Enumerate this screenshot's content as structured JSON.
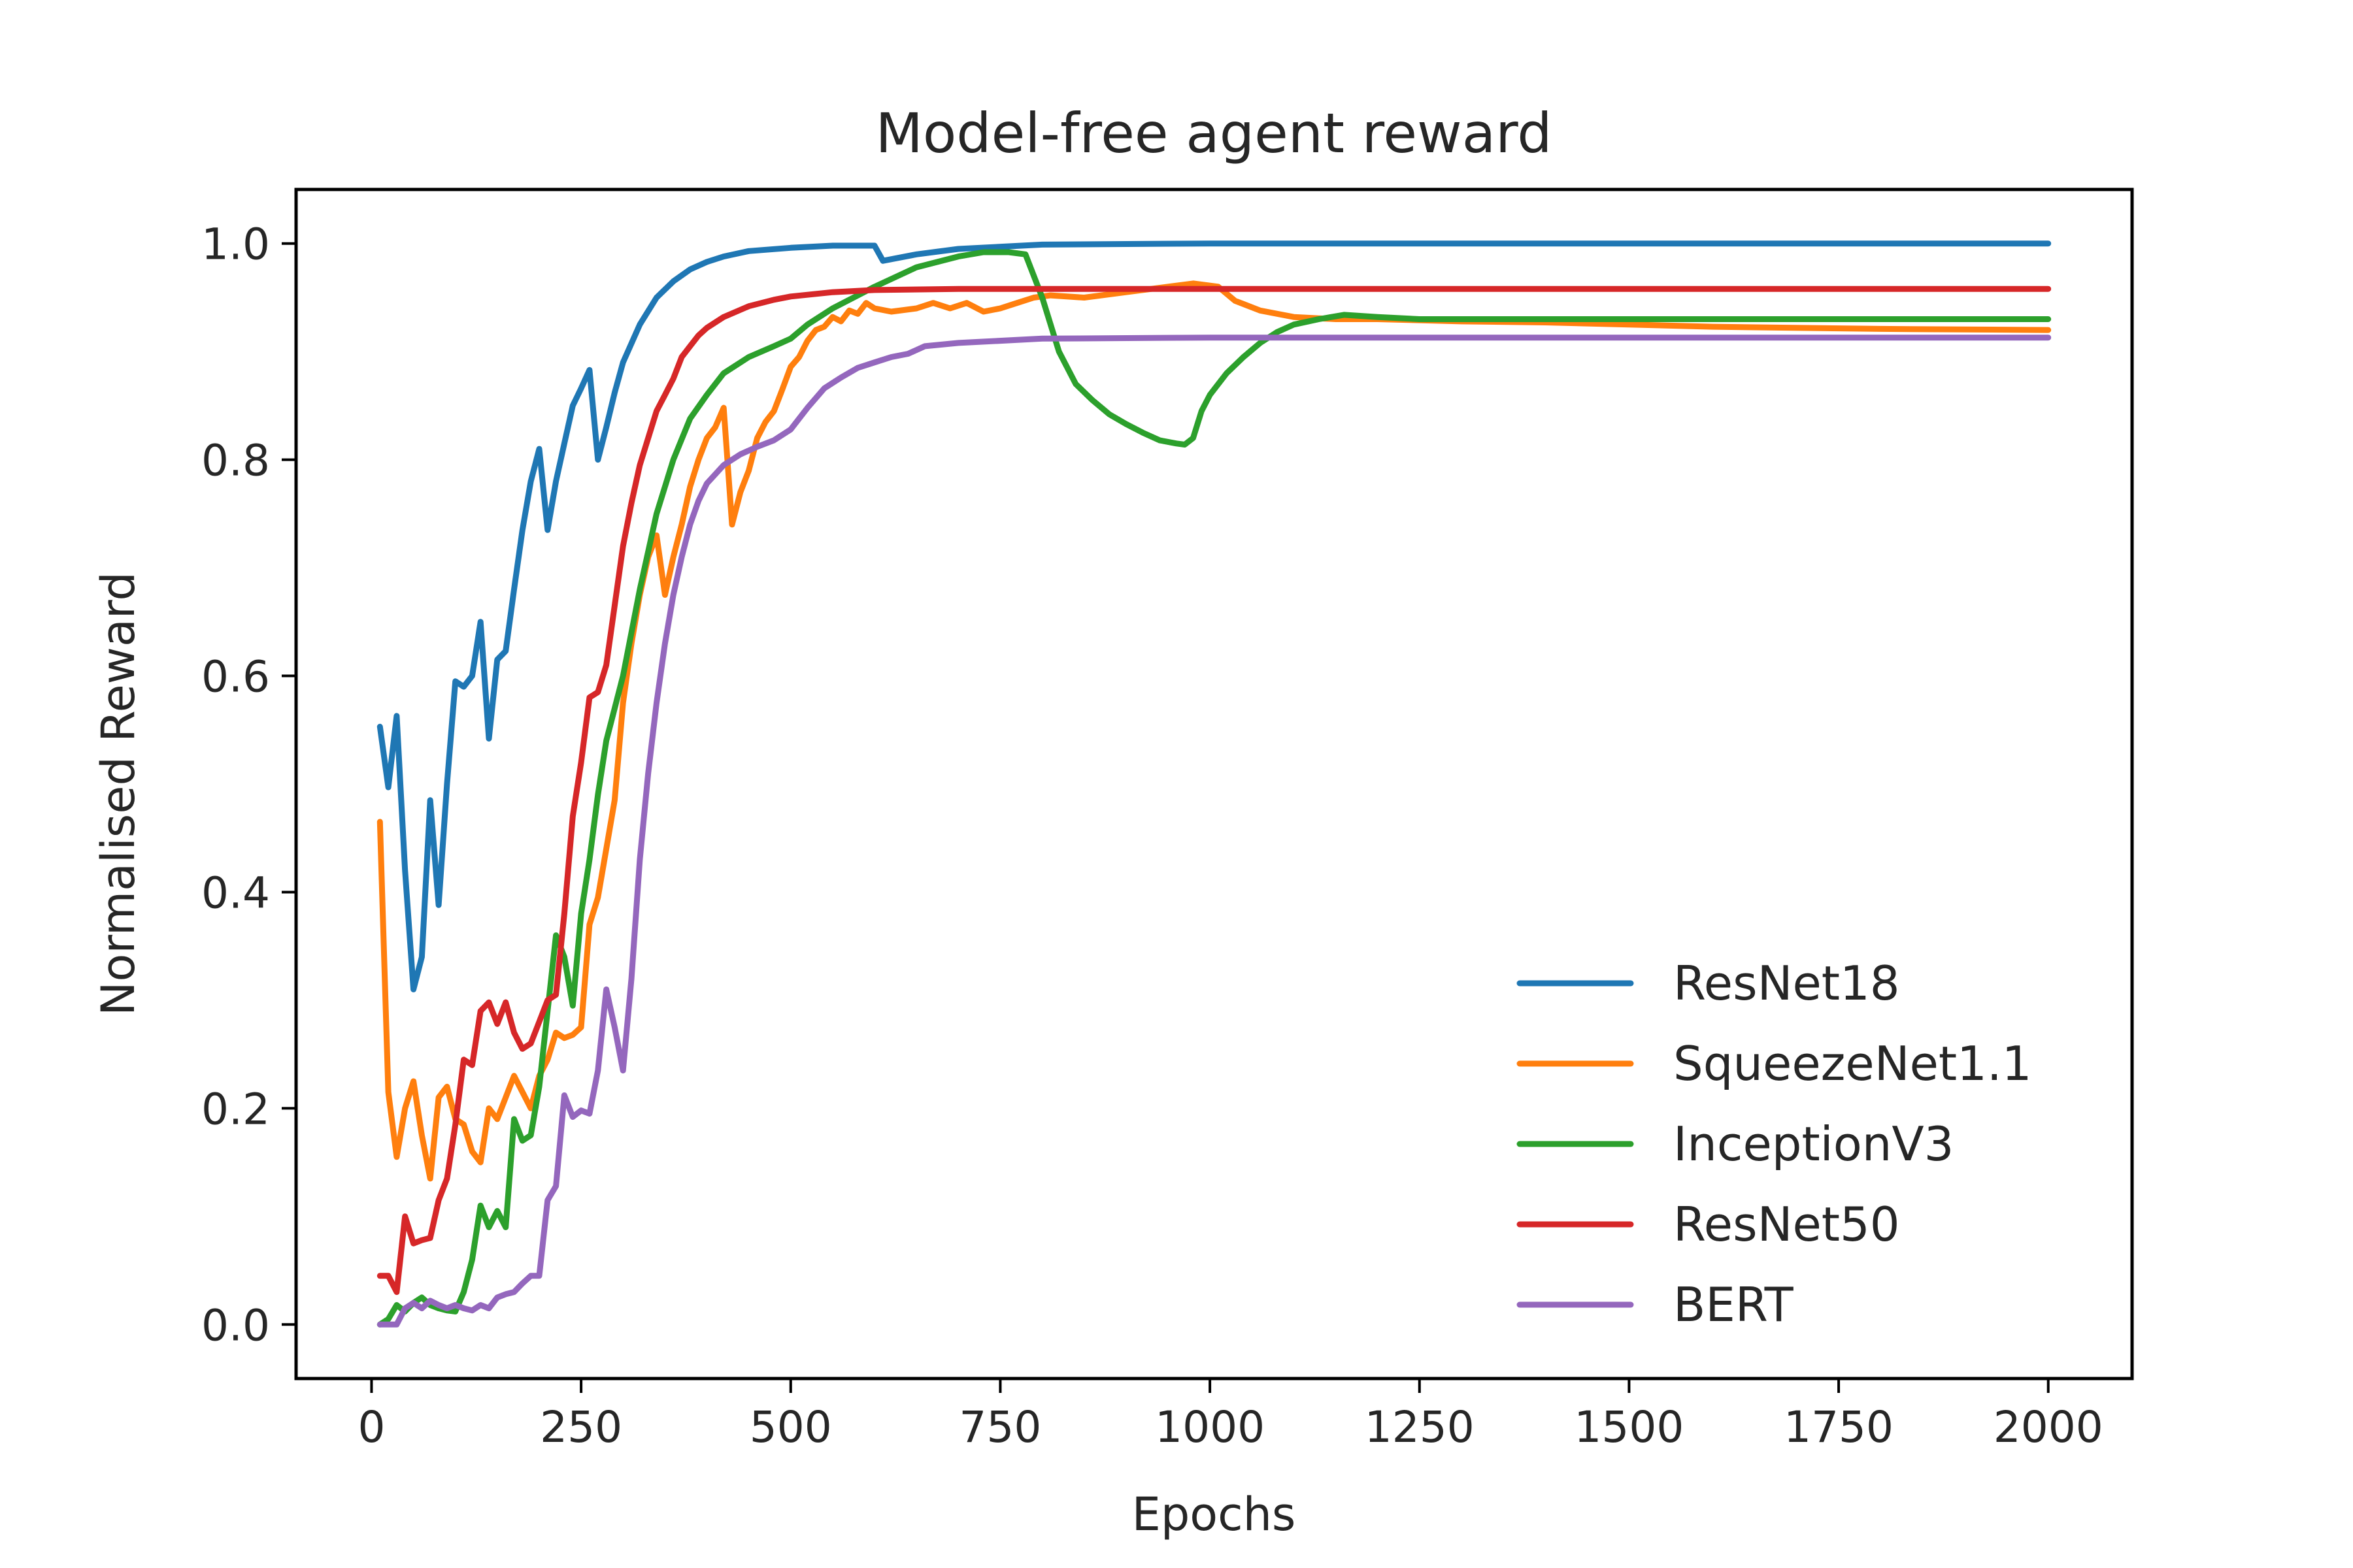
{
  "chart_data": {
    "type": "line",
    "title": "Model-free agent reward",
    "xlabel": "Epochs",
    "ylabel": "Normalised Reward",
    "xlim": [
      -90,
      2100
    ],
    "ylim": [
      -0.05,
      1.05
    ],
    "xticks": [
      0,
      250,
      500,
      750,
      1000,
      1250,
      1500,
      1750,
      2000
    ],
    "yticks": [
      0.0,
      0.2,
      0.4,
      0.6,
      0.8,
      1.0
    ],
    "xtick_labels": [
      "0",
      "250",
      "500",
      "750",
      "1000",
      "1250",
      "1500",
      "1750",
      "2000"
    ],
    "ytick_labels": [
      "0.0",
      "0.2",
      "0.4",
      "0.6",
      "0.8",
      "1.0"
    ],
    "grid": false,
    "legend_position": "lower-right",
    "series": [
      {
        "name": "ResNet18",
        "color": "#1f77b4",
        "points": [
          [
            10,
            0.553
          ],
          [
            20,
            0.497
          ],
          [
            30,
            0.563
          ],
          [
            40,
            0.42
          ],
          [
            50,
            0.31
          ],
          [
            60,
            0.34
          ],
          [
            70,
            0.485
          ],
          [
            80,
            0.388
          ],
          [
            90,
            0.5
          ],
          [
            100,
            0.595
          ],
          [
            110,
            0.59
          ],
          [
            120,
            0.6
          ],
          [
            130,
            0.65
          ],
          [
            140,
            0.542
          ],
          [
            150,
            0.615
          ],
          [
            160,
            0.623
          ],
          [
            170,
            0.68
          ],
          [
            180,
            0.735
          ],
          [
            190,
            0.78
          ],
          [
            200,
            0.81
          ],
          [
            210,
            0.735
          ],
          [
            220,
            0.78
          ],
          [
            230,
            0.815
          ],
          [
            240,
            0.85
          ],
          [
            250,
            0.866
          ],
          [
            260,
            0.883
          ],
          [
            270,
            0.8
          ],
          [
            280,
            0.83
          ],
          [
            290,
            0.862
          ],
          [
            300,
            0.89
          ],
          [
            320,
            0.925
          ],
          [
            340,
            0.95
          ],
          [
            360,
            0.965
          ],
          [
            380,
            0.976
          ],
          [
            400,
            0.983
          ],
          [
            420,
            0.988
          ],
          [
            450,
            0.993
          ],
          [
            500,
            0.996
          ],
          [
            550,
            0.998
          ],
          [
            600,
            0.998
          ],
          [
            610,
            0.984
          ],
          [
            650,
            0.99
          ],
          [
            700,
            0.995
          ],
          [
            800,
            0.999
          ],
          [
            1000,
            1.0
          ],
          [
            2000,
            1.0
          ]
        ]
      },
      {
        "name": "SqueezeNet1.1",
        "color": "#ff7f0e",
        "points": [
          [
            10,
            0.465
          ],
          [
            20,
            0.215
          ],
          [
            30,
            0.155
          ],
          [
            40,
            0.2
          ],
          [
            50,
            0.225
          ],
          [
            60,
            0.175
          ],
          [
            70,
            0.135
          ],
          [
            80,
            0.21
          ],
          [
            90,
            0.22
          ],
          [
            100,
            0.19
          ],
          [
            110,
            0.185
          ],
          [
            120,
            0.16
          ],
          [
            130,
            0.15
          ],
          [
            140,
            0.2
          ],
          [
            150,
            0.19
          ],
          [
            160,
            0.21
          ],
          [
            170,
            0.23
          ],
          [
            180,
            0.215
          ],
          [
            190,
            0.2
          ],
          [
            200,
            0.23
          ],
          [
            210,
            0.245
          ],
          [
            220,
            0.27
          ],
          [
            230,
            0.265
          ],
          [
            240,
            0.268
          ],
          [
            250,
            0.275
          ],
          [
            260,
            0.37
          ],
          [
            270,
            0.395
          ],
          [
            280,
            0.44
          ],
          [
            290,
            0.485
          ],
          [
            300,
            0.575
          ],
          [
            310,
            0.63
          ],
          [
            320,
            0.675
          ],
          [
            330,
            0.71
          ],
          [
            340,
            0.73
          ],
          [
            350,
            0.675
          ],
          [
            360,
            0.71
          ],
          [
            370,
            0.74
          ],
          [
            380,
            0.775
          ],
          [
            390,
            0.8
          ],
          [
            400,
            0.82
          ],
          [
            410,
            0.83
          ],
          [
            420,
            0.848
          ],
          [
            430,
            0.74
          ],
          [
            440,
            0.77
          ],
          [
            450,
            0.79
          ],
          [
            460,
            0.82
          ],
          [
            470,
            0.835
          ],
          [
            480,
            0.845
          ],
          [
            490,
            0.865
          ],
          [
            500,
            0.886
          ],
          [
            510,
            0.895
          ],
          [
            520,
            0.91
          ],
          [
            530,
            0.92
          ],
          [
            540,
            0.923
          ],
          [
            550,
            0.932
          ],
          [
            560,
            0.928
          ],
          [
            570,
            0.938
          ],
          [
            580,
            0.935
          ],
          [
            590,
            0.945
          ],
          [
            600,
            0.94
          ],
          [
            620,
            0.937
          ],
          [
            650,
            0.94
          ],
          [
            670,
            0.945
          ],
          [
            690,
            0.94
          ],
          [
            710,
            0.945
          ],
          [
            730,
            0.937
          ],
          [
            750,
            0.94
          ],
          [
            770,
            0.945
          ],
          [
            790,
            0.95
          ],
          [
            810,
            0.952
          ],
          [
            850,
            0.95
          ],
          [
            900,
            0.955
          ],
          [
            950,
            0.96
          ],
          [
            980,
            0.963
          ],
          [
            1010,
            0.96
          ],
          [
            1030,
            0.947
          ],
          [
            1060,
            0.938
          ],
          [
            1100,
            0.932
          ],
          [
            1150,
            0.93
          ],
          [
            1200,
            0.93
          ],
          [
            1300,
            0.928
          ],
          [
            1400,
            0.927
          ],
          [
            1500,
            0.925
          ],
          [
            1600,
            0.923
          ],
          [
            1800,
            0.921
          ],
          [
            2000,
            0.92
          ]
        ]
      },
      {
        "name": "InceptionV3",
        "color": "#2ca02c",
        "points": [
          [
            10,
            0.0
          ],
          [
            20,
            0.005
          ],
          [
            30,
            0.018
          ],
          [
            40,
            0.012
          ],
          [
            50,
            0.02
          ],
          [
            60,
            0.025
          ],
          [
            70,
            0.018
          ],
          [
            80,
            0.015
          ],
          [
            90,
            0.013
          ],
          [
            100,
            0.012
          ],
          [
            110,
            0.03
          ],
          [
            120,
            0.06
          ],
          [
            130,
            0.11
          ],
          [
            140,
            0.09
          ],
          [
            150,
            0.105
          ],
          [
            160,
            0.09
          ],
          [
            170,
            0.19
          ],
          [
            180,
            0.17
          ],
          [
            190,
            0.175
          ],
          [
            200,
            0.22
          ],
          [
            210,
            0.29
          ],
          [
            220,
            0.36
          ],
          [
            230,
            0.34
          ],
          [
            240,
            0.295
          ],
          [
            250,
            0.38
          ],
          [
            260,
            0.43
          ],
          [
            270,
            0.49
          ],
          [
            280,
            0.54
          ],
          [
            290,
            0.57
          ],
          [
            300,
            0.6
          ],
          [
            320,
            0.68
          ],
          [
            340,
            0.75
          ],
          [
            360,
            0.8
          ],
          [
            380,
            0.838
          ],
          [
            400,
            0.86
          ],
          [
            420,
            0.88
          ],
          [
            450,
            0.895
          ],
          [
            480,
            0.905
          ],
          [
            500,
            0.912
          ],
          [
            520,
            0.925
          ],
          [
            550,
            0.94
          ],
          [
            580,
            0.952
          ],
          [
            600,
            0.96
          ],
          [
            650,
            0.978
          ],
          [
            700,
            0.988
          ],
          [
            730,
            0.992
          ],
          [
            760,
            0.992
          ],
          [
            780,
            0.99
          ],
          [
            800,
            0.95
          ],
          [
            820,
            0.9
          ],
          [
            840,
            0.87
          ],
          [
            860,
            0.855
          ],
          [
            880,
            0.842
          ],
          [
            900,
            0.833
          ],
          [
            920,
            0.825
          ],
          [
            940,
            0.818
          ],
          [
            960,
            0.815
          ],
          [
            970,
            0.814
          ],
          [
            980,
            0.82
          ],
          [
            990,
            0.845
          ],
          [
            1000,
            0.86
          ],
          [
            1020,
            0.88
          ],
          [
            1040,
            0.895
          ],
          [
            1060,
            0.908
          ],
          [
            1080,
            0.918
          ],
          [
            1100,
            0.925
          ],
          [
            1130,
            0.93
          ],
          [
            1160,
            0.934
          ],
          [
            1200,
            0.932
          ],
          [
            1250,
            0.93
          ],
          [
            1300,
            0.93
          ],
          [
            1500,
            0.93
          ],
          [
            2000,
            0.93
          ]
        ]
      },
      {
        "name": "ResNet50",
        "color": "#d62728",
        "points": [
          [
            10,
            0.045
          ],
          [
            20,
            0.045
          ],
          [
            30,
            0.03
          ],
          [
            40,
            0.1
          ],
          [
            50,
            0.075
          ],
          [
            60,
            0.078
          ],
          [
            70,
            0.08
          ],
          [
            80,
            0.115
          ],
          [
            90,
            0.135
          ],
          [
            100,
            0.185
          ],
          [
            110,
            0.245
          ],
          [
            120,
            0.24
          ],
          [
            130,
            0.29
          ],
          [
            140,
            0.298
          ],
          [
            150,
            0.278
          ],
          [
            160,
            0.298
          ],
          [
            170,
            0.27
          ],
          [
            180,
            0.255
          ],
          [
            190,
            0.26
          ],
          [
            200,
            0.28
          ],
          [
            210,
            0.3
          ],
          [
            220,
            0.305
          ],
          [
            230,
            0.38
          ],
          [
            240,
            0.47
          ],
          [
            250,
            0.52
          ],
          [
            260,
            0.58
          ],
          [
            270,
            0.585
          ],
          [
            280,
            0.61
          ],
          [
            290,
            0.665
          ],
          [
            300,
            0.72
          ],
          [
            310,
            0.76
          ],
          [
            320,
            0.795
          ],
          [
            330,
            0.82
          ],
          [
            340,
            0.845
          ],
          [
            350,
            0.86
          ],
          [
            360,
            0.875
          ],
          [
            370,
            0.895
          ],
          [
            380,
            0.905
          ],
          [
            390,
            0.915
          ],
          [
            400,
            0.922
          ],
          [
            420,
            0.932
          ],
          [
            450,
            0.942
          ],
          [
            480,
            0.948
          ],
          [
            500,
            0.951
          ],
          [
            550,
            0.955
          ],
          [
            600,
            0.957
          ],
          [
            700,
            0.958
          ],
          [
            800,
            0.958
          ],
          [
            1000,
            0.958
          ],
          [
            2000,
            0.958
          ]
        ]
      },
      {
        "name": "BERT",
        "color": "#9467bd",
        "points": [
          [
            10,
            0.0
          ],
          [
            20,
            0.0
          ],
          [
            30,
            0.0
          ],
          [
            40,
            0.015
          ],
          [
            50,
            0.02
          ],
          [
            60,
            0.015
          ],
          [
            70,
            0.022
          ],
          [
            80,
            0.018
          ],
          [
            90,
            0.015
          ],
          [
            100,
            0.018
          ],
          [
            110,
            0.015
          ],
          [
            120,
            0.013
          ],
          [
            130,
            0.018
          ],
          [
            140,
            0.015
          ],
          [
            150,
            0.025
          ],
          [
            160,
            0.028
          ],
          [
            170,
            0.03
          ],
          [
            180,
            0.038
          ],
          [
            190,
            0.045
          ],
          [
            200,
            0.045
          ],
          [
            210,
            0.115
          ],
          [
            220,
            0.128
          ],
          [
            230,
            0.212
          ],
          [
            240,
            0.192
          ],
          [
            250,
            0.198
          ],
          [
            260,
            0.195
          ],
          [
            270,
            0.235
          ],
          [
            280,
            0.31
          ],
          [
            290,
            0.275
          ],
          [
            300,
            0.235
          ],
          [
            310,
            0.32
          ],
          [
            320,
            0.43
          ],
          [
            330,
            0.51
          ],
          [
            340,
            0.575
          ],
          [
            350,
            0.63
          ],
          [
            360,
            0.675
          ],
          [
            370,
            0.71
          ],
          [
            380,
            0.74
          ],
          [
            390,
            0.762
          ],
          [
            400,
            0.778
          ],
          [
            420,
            0.795
          ],
          [
            440,
            0.805
          ],
          [
            460,
            0.812
          ],
          [
            480,
            0.818
          ],
          [
            500,
            0.828
          ],
          [
            520,
            0.848
          ],
          [
            540,
            0.866
          ],
          [
            560,
            0.876
          ],
          [
            580,
            0.885
          ],
          [
            600,
            0.89
          ],
          [
            620,
            0.895
          ],
          [
            640,
            0.898
          ],
          [
            660,
            0.905
          ],
          [
            700,
            0.908
          ],
          [
            800,
            0.912
          ],
          [
            1000,
            0.913
          ],
          [
            1500,
            0.913
          ],
          [
            2000,
            0.913
          ]
        ]
      }
    ]
  }
}
